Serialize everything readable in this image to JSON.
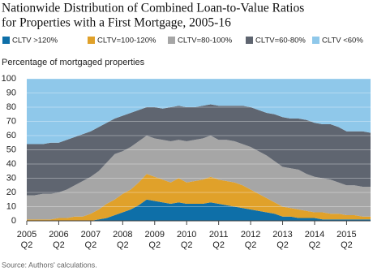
{
  "chart_data": {
    "type": "stacked-area",
    "title": [
      "Nationwide Distribution of Combined Loan-to-Value Ratios",
      "for Properties with a First Mortgage, 2005-16"
    ],
    "y_label": "Percentage of mortgaged properties",
    "source": "Source: Authors' calculations.",
    "categories": [
      "2005",
      null,
      null,
      null,
      "2006",
      null,
      null,
      null,
      "2007",
      null,
      null,
      null,
      "2008",
      null,
      null,
      null,
      "2009",
      null,
      null,
      null,
      "2010",
      null,
      null,
      null,
      "2011",
      null,
      null,
      null,
      "2012",
      null,
      null,
      null,
      "2013",
      null,
      null,
      null,
      "2014",
      null,
      null,
      null,
      "2015",
      null,
      null,
      null
    ],
    "quarters": [
      "Q2",
      null,
      null,
      null,
      "Q2",
      null,
      null,
      null,
      "Q2",
      null,
      null,
      null,
      "Q2",
      null,
      null,
      null,
      "Q2",
      null,
      null,
      null,
      "Q2",
      null,
      null,
      null,
      "Q2",
      null,
      null,
      null,
      "Q2",
      null,
      null,
      null,
      "Q2",
      null,
      null,
      null,
      "Q2",
      null,
      null,
      null,
      "Q2",
      null,
      null,
      null
    ],
    "ylim": [
      0,
      100
    ],
    "yticks": [
      0,
      10,
      20,
      30,
      40,
      50,
      60,
      70,
      80,
      90,
      100
    ],
    "grid": true,
    "series": [
      {
        "name": "CLTV >120%",
        "color": "#0e6fa8",
        "values": [
          0,
          0,
          0,
          0,
          0,
          0,
          0,
          0,
          0,
          1,
          2,
          4,
          6,
          8,
          11,
          15,
          14,
          13,
          12,
          13,
          12,
          12,
          12,
          13,
          12,
          11,
          10,
          9,
          8,
          7,
          6,
          5,
          3,
          3,
          2,
          2,
          2,
          1,
          1,
          1,
          1,
          1,
          1,
          1
        ]
      },
      {
        "name": "CLTV=100-120%",
        "color": "#e0a12a",
        "values": [
          1,
          1,
          1,
          1,
          2,
          2,
          3,
          3,
          5,
          7,
          10,
          11,
          13,
          14,
          16,
          18,
          17,
          16,
          15,
          17,
          15,
          16,
          17,
          18,
          17,
          17,
          17,
          16,
          14,
          12,
          10,
          8,
          7,
          6,
          6,
          5,
          4,
          5,
          4,
          4,
          3,
          3,
          2,
          2
        ]
      },
      {
        "name": "CLTV=80-100%",
        "color": "#a6a6a6",
        "values": [
          17,
          17,
          18,
          18,
          18,
          20,
          22,
          25,
          26,
          27,
          29,
          32,
          30,
          30,
          29,
          27,
          27,
          28,
          29,
          27,
          29,
          29,
          29,
          29,
          28,
          29,
          29,
          29,
          30,
          30,
          30,
          29,
          28,
          28,
          28,
          26,
          25,
          24,
          24,
          22,
          21,
          21,
          21,
          21
        ]
      },
      {
        "name": "CLTV=60-80%",
        "color": "#5f6570",
        "values": [
          36,
          36,
          35,
          36,
          35,
          35,
          34,
          33,
          32,
          31,
          28,
          25,
          25,
          24,
          22,
          20,
          22,
          22,
          24,
          24,
          24,
          23,
          23,
          22,
          24,
          24,
          25,
          27,
          28,
          29,
          30,
          33,
          35,
          35,
          36,
          38,
          38,
          38,
          39,
          39,
          38,
          38,
          39,
          38
        ]
      },
      {
        "name": "CLTV <60%",
        "color": "#8fc8ea",
        "values": [
          46,
          46,
          46,
          45,
          45,
          43,
          41,
          39,
          37,
          34,
          31,
          28,
          26,
          24,
          22,
          20,
          20,
          21,
          20,
          19,
          20,
          20,
          19,
          18,
          19,
          19,
          19,
          19,
          20,
          22,
          24,
          25,
          27,
          28,
          28,
          29,
          31,
          32,
          32,
          34,
          37,
          37,
          37,
          38
        ]
      }
    ]
  }
}
